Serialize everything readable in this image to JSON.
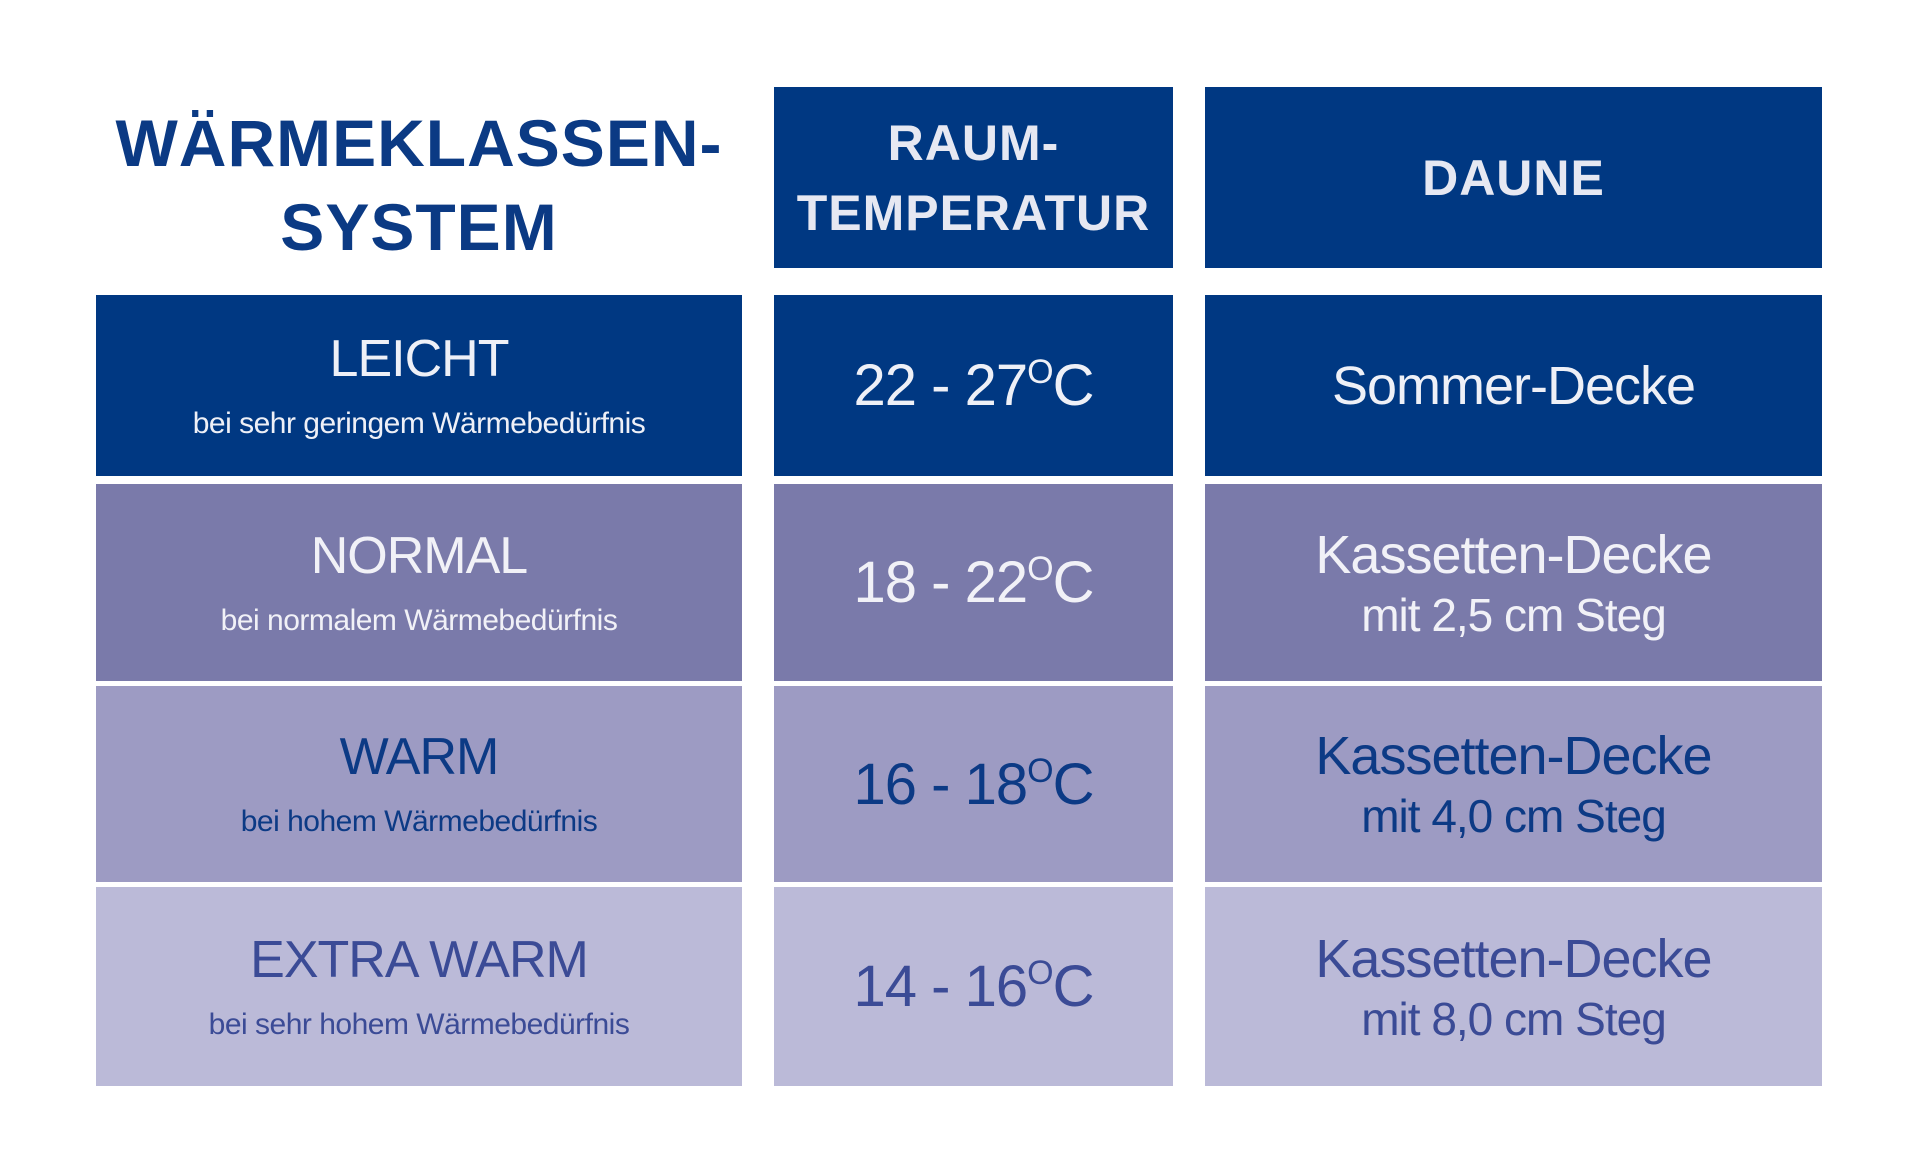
{
  "title": {
    "line1": "WÄRMEKLASSEN-",
    "line2": "SYSTEM"
  },
  "headers": {
    "temp_line1": "RAUM-",
    "temp_line2": "TEMPERATUR",
    "daune": "DAUNE"
  },
  "rows": [
    {
      "klasse": "LEICHT",
      "beschreibung": "bei sehr geringem Wärmebedürfnis",
      "temp_range": "22 - 27",
      "degree": "O",
      "unit": "C",
      "decke": "Sommer-Decke",
      "steg": ""
    },
    {
      "klasse": "NORMAL",
      "beschreibung": "bei normalem Wärmebedürfnis",
      "temp_range": "18 - 22",
      "degree": "O",
      "unit": "C",
      "decke": "Kassetten-Decke",
      "steg": "mit 2,5 cm Steg"
    },
    {
      "klasse": "WARM",
      "beschreibung": "bei hohem Wärmebedürfnis",
      "temp_range": "16 - 18",
      "degree": "O",
      "unit": "C",
      "decke": "Kassetten-Decke",
      "steg": "mit 4,0 cm Steg"
    },
    {
      "klasse": "EXTRA WARM",
      "beschreibung": "bei sehr hohem Wärmebedürfnis",
      "temp_range": "14 - 16",
      "degree": "O",
      "unit": "C",
      "decke": "Kassetten-Decke",
      "steg": "mit 8,0 cm Steg"
    }
  ],
  "colors": {
    "dark_blue": "#003882",
    "normal": "#7a7aaa",
    "warm": "#9d9bc3",
    "extra_warm": "#bbbad8"
  }
}
